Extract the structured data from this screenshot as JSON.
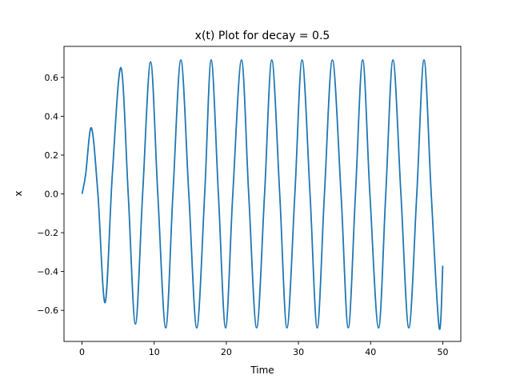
{
  "chart_data": {
    "type": "line",
    "title": "x(t) Plot for decay = 0.5",
    "xlabel": "Time",
    "ylabel": "x",
    "xlim": [
      -2.5,
      52.5
    ],
    "ylim": [
      -0.76,
      0.76
    ],
    "xticks": [
      0,
      10,
      20,
      30,
      40,
      50
    ],
    "xtick_labels": [
      "0",
      "10",
      "20",
      "30",
      "40",
      "50"
    ],
    "yticks": [
      -0.6,
      -0.4,
      -0.2,
      0.0,
      0.2,
      0.4,
      0.6
    ],
    "ytick_labels": [
      "−0.6",
      "−0.4",
      "−0.2",
      "0.0",
      "0.2",
      "0.4",
      "0.6"
    ],
    "grid": false,
    "series": [
      {
        "color": "#1f77b4",
        "x": [
          0,
          0.5,
          1.3,
          2.2,
          3.2,
          4.2,
          5.4,
          6.4,
          7.4,
          8.4,
          9.5,
          10.5,
          11.6,
          12.6,
          13.7,
          14.8,
          15.9,
          17.0,
          17.9,
          18.9,
          19.9,
          20.9,
          22.1,
          23.1,
          24.2,
          25.3,
          26.3,
          27.4,
          28.4,
          29.5,
          30.5,
          31.6,
          32.6,
          33.6,
          34.7,
          35.9,
          36.9,
          37.9,
          38.9,
          39.9,
          41.1,
          42.1,
          43.1,
          44.2,
          45.3,
          46.4,
          47.4,
          48.4,
          49.5,
          50.0
        ],
        "y": [
          0.0,
          0.1,
          0.34,
          0.0,
          -0.56,
          0.1,
          0.65,
          0.0,
          -0.67,
          0.0,
          0.68,
          0.0,
          -0.69,
          0.0,
          0.69,
          0.0,
          -0.69,
          0.0,
          0.69,
          0.0,
          -0.69,
          0.0,
          0.69,
          0.0,
          -0.69,
          0.0,
          0.69,
          0.0,
          -0.69,
          0.0,
          0.69,
          0.0,
          -0.69,
          0.0,
          0.69,
          0.0,
          -0.69,
          0.0,
          0.69,
          0.0,
          -0.69,
          0.0,
          0.69,
          0.0,
          -0.69,
          0.0,
          0.69,
          0.0,
          -0.69,
          -0.37
        ]
      }
    ]
  }
}
